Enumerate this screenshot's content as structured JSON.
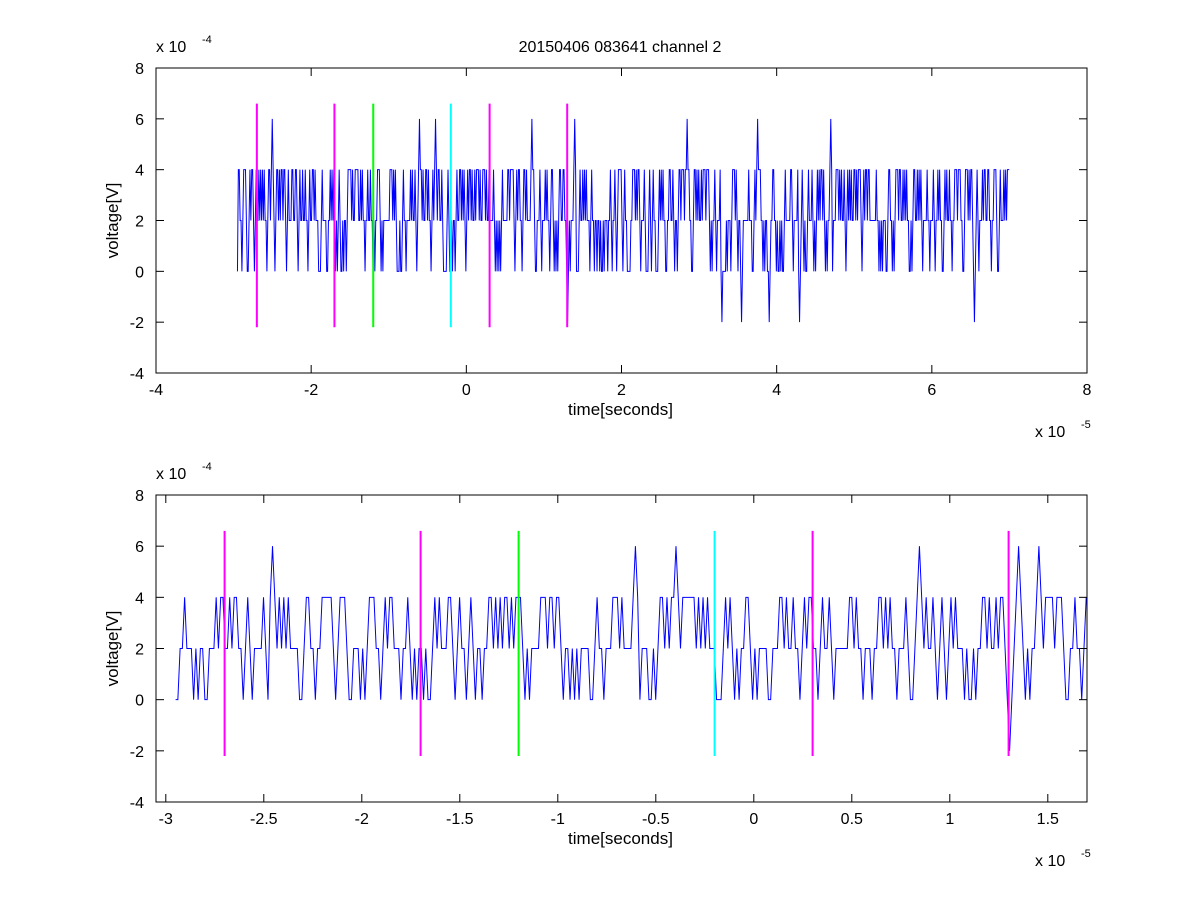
{
  "figure_title": "20150406 083641 channel 2",
  "colors": {
    "signal": "#0000ff",
    "magenta": "#ff00ff",
    "green": "#00ff00",
    "cyan": "#00ffff",
    "axes": "#000000"
  },
  "chart_data": [
    {
      "type": "line",
      "title": "20150406 083641 channel 2",
      "xlabel": "time[seconds]",
      "ylabel": "voltage[V]",
      "x_exponent_label": "x 10",
      "x_exponent": "-5",
      "y_exponent_label": "x 10",
      "y_exponent": "-4",
      "xlim": [
        -4,
        8
      ],
      "ylim": [
        -4,
        8
      ],
      "x_ticks": [
        -4,
        -2,
        0,
        2,
        4,
        6,
        8
      ],
      "x_tick_labels": [
        "-4",
        "-2",
        "0",
        "2",
        "4",
        "6",
        "8"
      ],
      "y_ticks": [
        -4,
        -2,
        0,
        2,
        4,
        6,
        8
      ],
      "y_tick_labels": [
        "-4",
        "-2",
        "0",
        "2",
        "4",
        "6",
        "8"
      ],
      "grid": false,
      "signal_range": [
        -2.95,
        7.0
      ],
      "signal_levels": [
        -2,
        0,
        2,
        4,
        6
      ],
      "signal_spikes": [
        {
          "x": -2.5,
          "y": 6
        },
        {
          "x": -0.6,
          "y": 6
        },
        {
          "x": -0.4,
          "y": 6
        },
        {
          "x": 0.85,
          "y": 6
        },
        {
          "x": 1.4,
          "y": 6
        },
        {
          "x": 2.85,
          "y": 6
        },
        {
          "x": 3.75,
          "y": 6
        },
        {
          "x": 4.7,
          "y": 6
        },
        {
          "x": 1.3,
          "y": -2
        },
        {
          "x": 3.3,
          "y": -2
        },
        {
          "x": 3.55,
          "y": -2
        },
        {
          "x": 3.9,
          "y": -2
        },
        {
          "x": 4.3,
          "y": -2
        },
        {
          "x": 6.55,
          "y": -2
        }
      ],
      "markers": [
        {
          "x": -2.7,
          "color": "magenta",
          "y_range": [
            -2.2,
            6.6
          ]
        },
        {
          "x": -1.7,
          "color": "magenta",
          "y_range": [
            -2.2,
            6.6
          ]
        },
        {
          "x": -1.2,
          "color": "green",
          "y_range": [
            -2.2,
            6.6
          ]
        },
        {
          "x": -0.2,
          "color": "cyan",
          "y_range": [
            -2.2,
            6.6
          ]
        },
        {
          "x": 0.3,
          "color": "magenta",
          "y_range": [
            -2.2,
            6.6
          ]
        },
        {
          "x": 1.3,
          "color": "magenta",
          "y_range": [
            -2.2,
            6.6
          ]
        }
      ]
    },
    {
      "type": "line",
      "title": "",
      "xlabel": "time[seconds]",
      "ylabel": "voltage[V]",
      "x_exponent_label": "x 10",
      "x_exponent": "-5",
      "y_exponent_label": "x 10",
      "y_exponent": "-4",
      "xlim": [
        -3.05,
        1.7
      ],
      "ylim": [
        -4,
        8
      ],
      "x_ticks": [
        -3,
        -2.5,
        -2,
        -1.5,
        -1,
        -0.5,
        0,
        0.5,
        1,
        1.5
      ],
      "x_tick_labels": [
        "-3",
        "-2.5",
        "-2",
        "-1.5",
        "-1",
        "-0.5",
        "0",
        "0.5",
        "1",
        "1.5"
      ],
      "y_ticks": [
        -4,
        -2,
        0,
        2,
        4,
        6,
        8
      ],
      "y_tick_labels": [
        "-4",
        "-2",
        "0",
        "2",
        "4",
        "6",
        "8"
      ],
      "grid": false,
      "signal_range": [
        -2.95,
        1.7
      ],
      "signal_levels": [
        -2,
        0,
        2,
        4,
        6
      ],
      "signal_spikes": [
        {
          "x": -2.45,
          "y": 6
        },
        {
          "x": -0.6,
          "y": 6
        },
        {
          "x": -0.4,
          "y": 6
        },
        {
          "x": 0.85,
          "y": 6
        },
        {
          "x": 1.35,
          "y": 6
        },
        {
          "x": 1.45,
          "y": 6
        },
        {
          "x": 1.3,
          "y": -2
        }
      ],
      "markers": [
        {
          "x": -2.7,
          "color": "magenta",
          "y_range": [
            -2.2,
            6.6
          ]
        },
        {
          "x": -1.7,
          "color": "magenta",
          "y_range": [
            -2.2,
            6.6
          ]
        },
        {
          "x": -1.2,
          "color": "green",
          "y_range": [
            -2.2,
            6.6
          ]
        },
        {
          "x": -0.2,
          "color": "cyan",
          "y_range": [
            -2.2,
            6.6
          ]
        },
        {
          "x": 0.3,
          "color": "magenta",
          "y_range": [
            -2.2,
            6.6
          ]
        },
        {
          "x": 1.3,
          "color": "magenta",
          "y_range": [
            -2.2,
            6.6
          ]
        }
      ]
    }
  ]
}
